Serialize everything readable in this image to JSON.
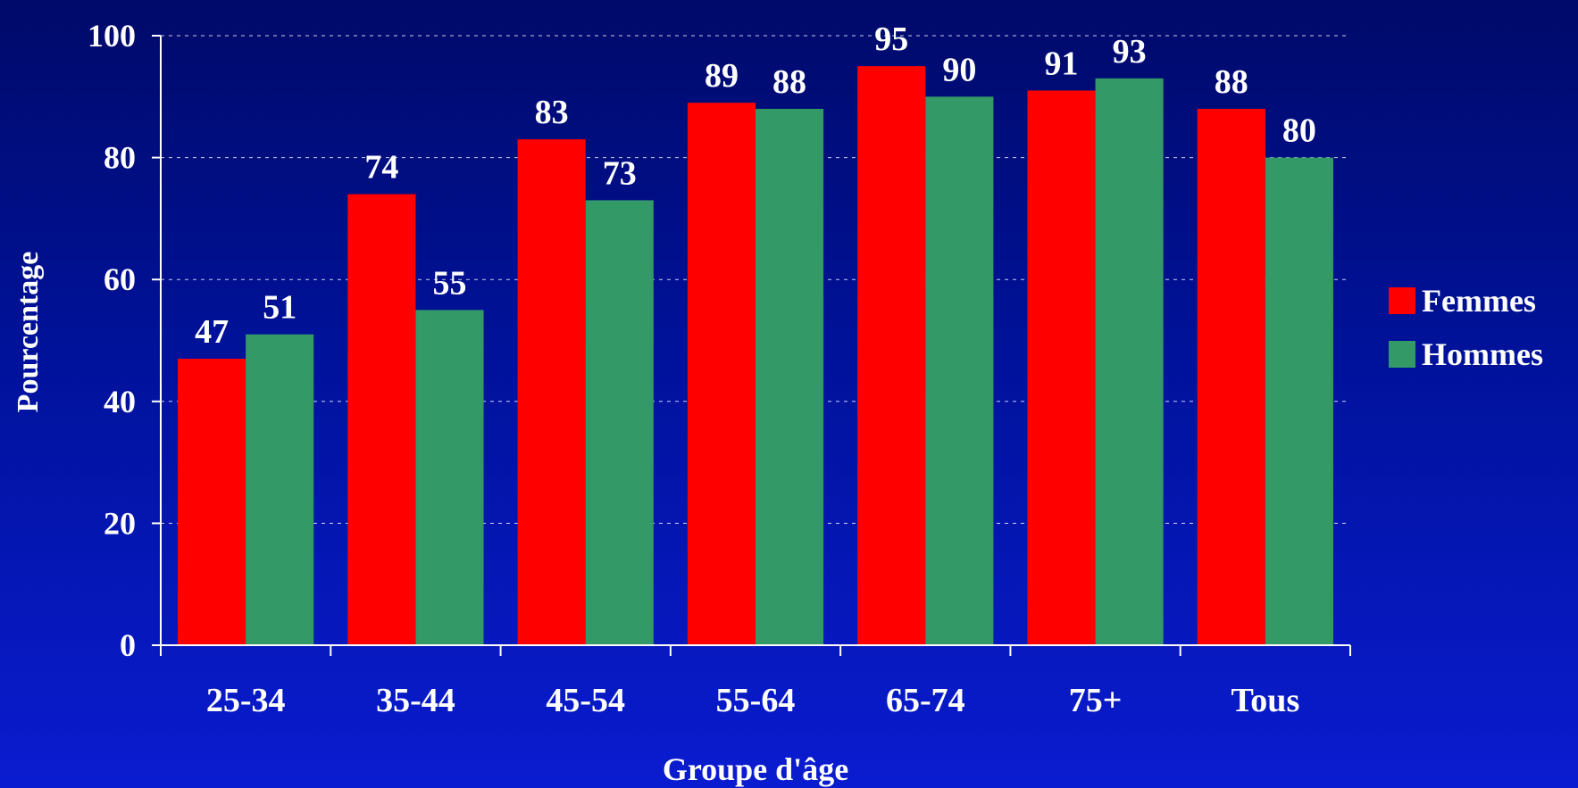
{
  "chart_data": {
    "type": "bar",
    "title": "",
    "xlabel": "Groupe d'âge",
    "ylabel": "Pourcentage",
    "categories": [
      "25-34",
      "35-44",
      "45-54",
      "55-64",
      "65-74",
      "75+",
      "Tous"
    ],
    "series": [
      {
        "name": "Femmes",
        "color": "#ff0000",
        "values": [
          47,
          74,
          83,
          89,
          95,
          91,
          88
        ]
      },
      {
        "name": "Hommes",
        "color": "#339966",
        "values": [
          51,
          55,
          73,
          88,
          90,
          93,
          80
        ]
      }
    ],
    "ylim": [
      0,
      100
    ],
    "yticks": [
      0,
      20,
      40,
      60,
      80,
      100
    ],
    "grid": true,
    "legend_position": "right"
  }
}
